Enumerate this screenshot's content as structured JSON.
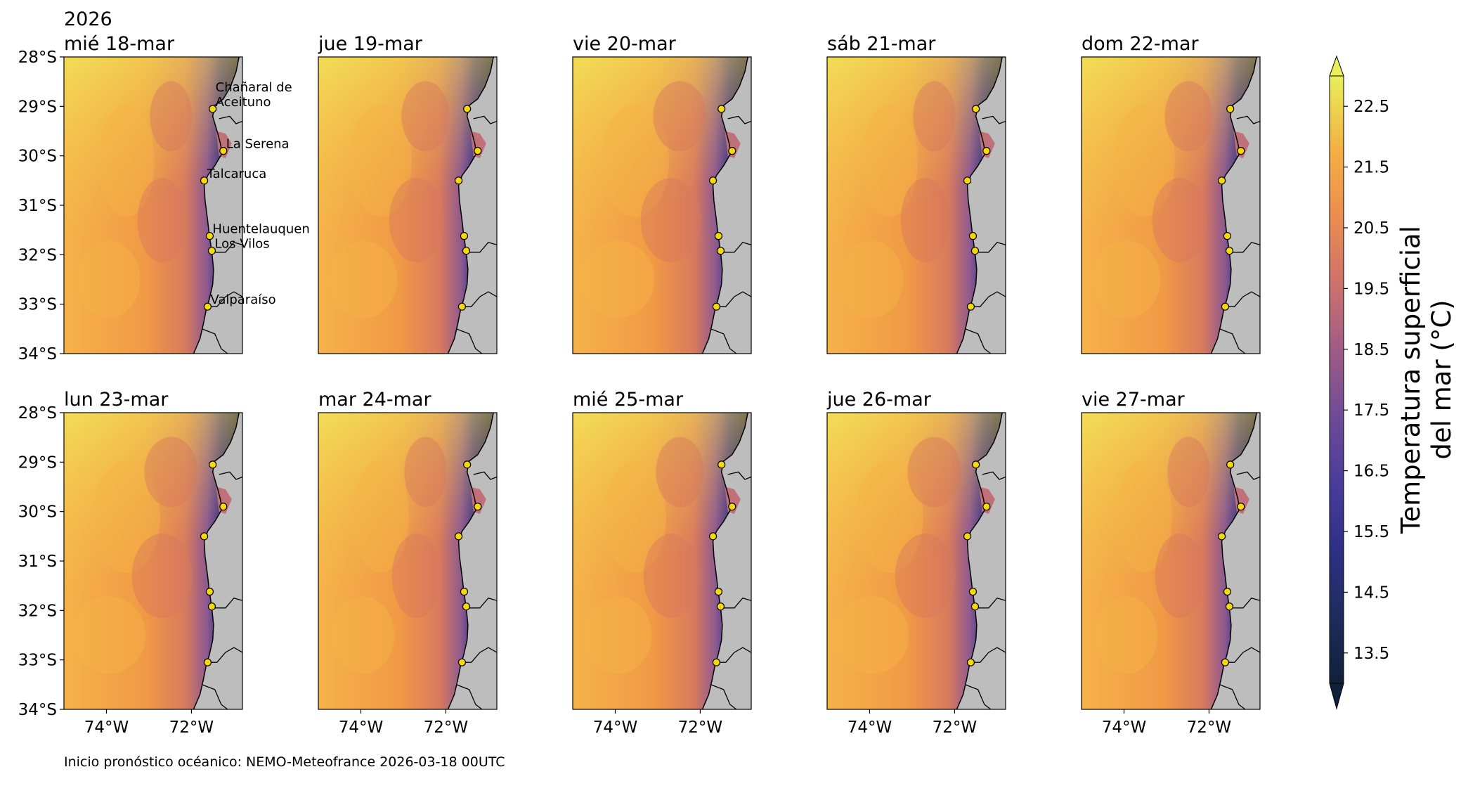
{
  "chart_data": {
    "type": "heatmap",
    "year_label": "2026",
    "panels": [
      {
        "title": "mié 18-mar"
      },
      {
        "title": "jue 19-mar"
      },
      {
        "title": "vie 20-mar"
      },
      {
        "title": "sáb 21-mar"
      },
      {
        "title": "dom 22-mar"
      },
      {
        "title": "lun 23-mar"
      },
      {
        "title": "mar 24-mar"
      },
      {
        "title": "mié 25-mar"
      },
      {
        "title": "jue 26-mar"
      },
      {
        "title": "vie 27-mar"
      }
    ],
    "lon_range": [
      -75,
      -70.8
    ],
    "lat_range": [
      -34,
      -28
    ],
    "x_ticks": [
      {
        "value": -74,
        "label": "74°W"
      },
      {
        "value": -72,
        "label": "72°W"
      }
    ],
    "y_ticks": [
      {
        "value": -28,
        "label": "28°S"
      },
      {
        "value": -29,
        "label": "29°S"
      },
      {
        "value": -30,
        "label": "30°S"
      },
      {
        "value": -31,
        "label": "31°S"
      },
      {
        "value": -32,
        "label": "32°S"
      },
      {
        "value": -33,
        "label": "33°S"
      },
      {
        "value": -34,
        "label": "34°S"
      }
    ],
    "locations": [
      {
        "name": "Chañaral de Aceituno",
        "lines": [
          "Chañaral de",
          "Aceituno"
        ],
        "lon": -71.5,
        "lat": -29.05
      },
      {
        "name": "La Serena",
        "lines": [
          "La Serena"
        ],
        "lon": -71.25,
        "lat": -29.9
      },
      {
        "name": "Talcaruca",
        "lines": [
          "Talcaruca"
        ],
        "lon": -71.7,
        "lat": -30.5
      },
      {
        "name": "Huentelauquen",
        "lines": [
          "Huentelauquen"
        ],
        "lon": -71.57,
        "lat": -31.62
      },
      {
        "name": "Los Vilos",
        "lines": [
          "Los Vilos"
        ],
        "lon": -71.52,
        "lat": -31.92
      },
      {
        "name": "Valparaíso",
        "lines": [
          "Valparaíso"
        ],
        "lon": -71.62,
        "lat": -33.05
      }
    ],
    "colorbar": {
      "label_lines": [
        "Temperatura superficial",
        "del mar (°C)"
      ],
      "min": 13.0,
      "max": 23.0,
      "ticks": [
        13.5,
        14.5,
        15.5,
        16.5,
        17.5,
        18.5,
        19.5,
        20.5,
        21.5,
        22.5
      ],
      "tick_labels": [
        "13.5",
        "14.5",
        "15.5",
        "16.5",
        "17.5",
        "18.5",
        "19.5",
        "20.5",
        "21.5",
        "22.5"
      ],
      "colors": [
        "#10203a",
        "#2a2a7a",
        "#4a3a9a",
        "#6e4a95",
        "#9a5a8a",
        "#c46e72",
        "#e98a50",
        "#f4a040",
        "#f3c445",
        "#e8ef5a"
      ]
    }
  },
  "footer_note": "Inicio pronóstico océanico: NEMO-Meteofrance 2026-03-18 00UTC"
}
